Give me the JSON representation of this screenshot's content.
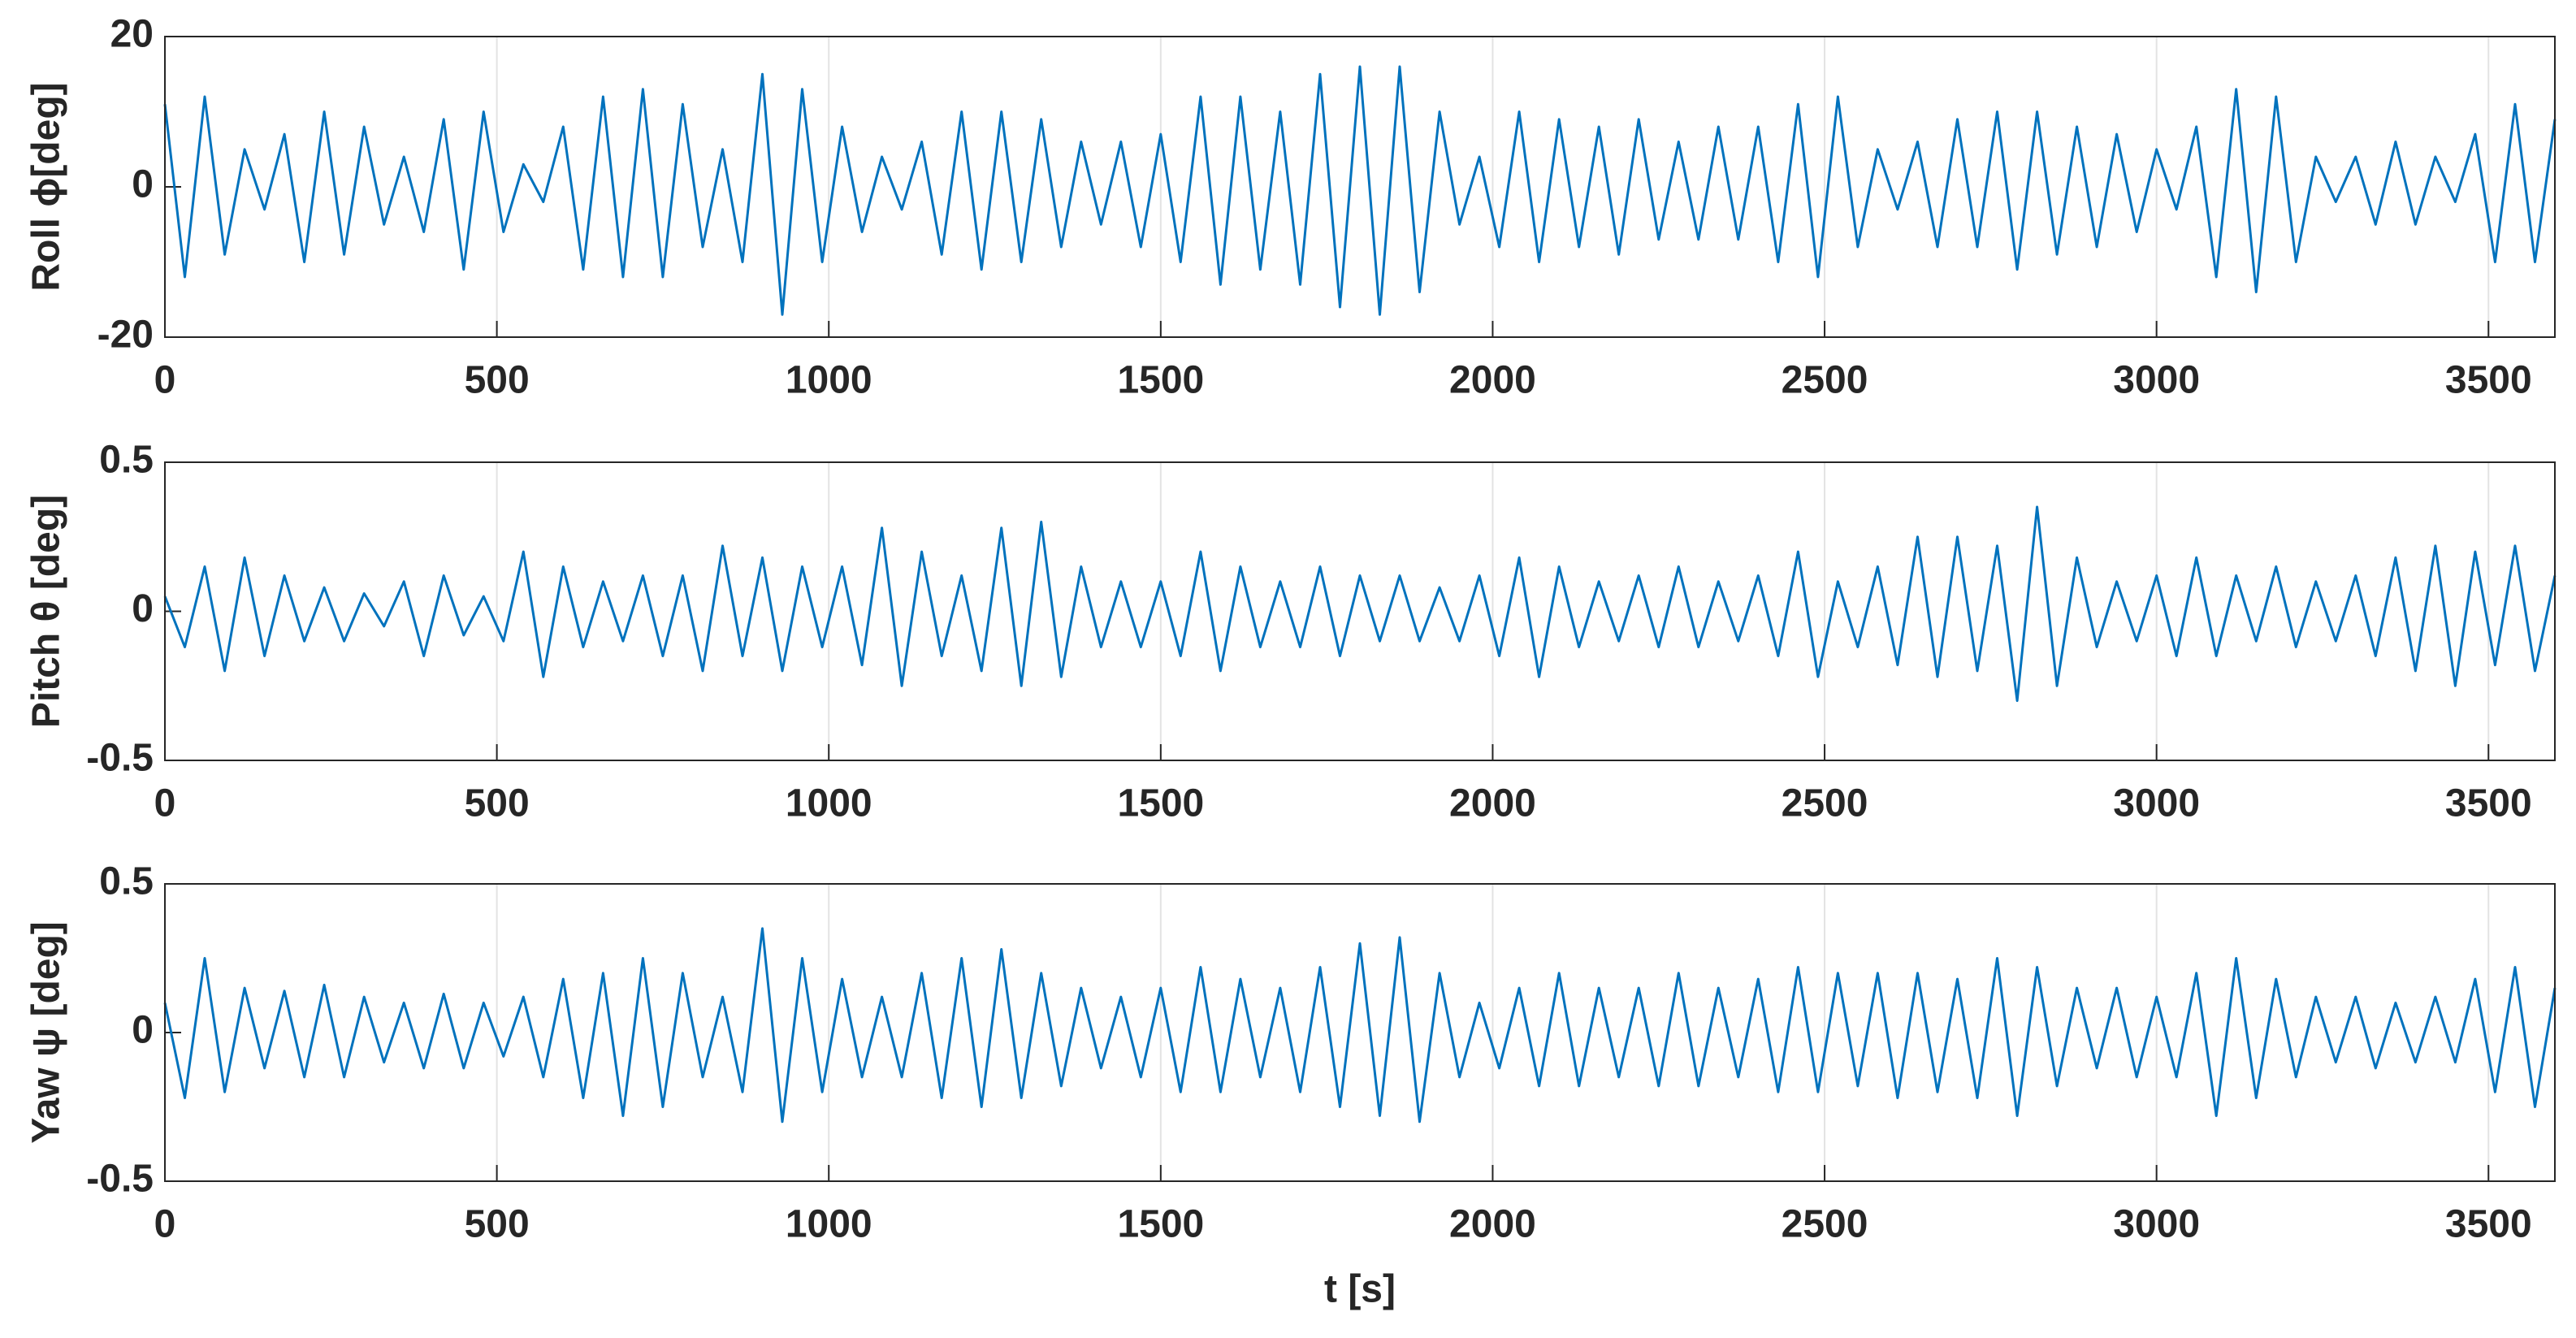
{
  "chart_data": [
    {
      "type": "line",
      "ylabel": "Roll ϕ[deg]",
      "xlim": [
        0,
        3600
      ],
      "ylim": [
        -20,
        20
      ],
      "xticks": [
        0,
        500,
        1000,
        1500,
        2000,
        2500,
        3000,
        3500
      ],
      "yticks": [
        -20,
        0,
        20
      ],
      "grid": "x",
      "x": [
        0,
        30,
        60,
        90,
        120,
        150,
        180,
        210,
        240,
        270,
        300,
        330,
        360,
        390,
        420,
        450,
        480,
        510,
        540,
        570,
        600,
        630,
        660,
        690,
        720,
        750,
        780,
        810,
        840,
        870,
        900,
        930,
        960,
        990,
        1020,
        1050,
        1080,
        1110,
        1140,
        1170,
        1200,
        1230,
        1260,
        1290,
        1320,
        1350,
        1380,
        1410,
        1440,
        1470,
        1500,
        1530,
        1560,
        1590,
        1620,
        1650,
        1680,
        1710,
        1740,
        1770,
        1800,
        1830,
        1860,
        1890,
        1920,
        1950,
        1980,
        2010,
        2040,
        2070,
        2100,
        2130,
        2160,
        2190,
        2220,
        2250,
        2280,
        2310,
        2340,
        2370,
        2400,
        2430,
        2460,
        2490,
        2520,
        2550,
        2580,
        2610,
        2640,
        2670,
        2700,
        2730,
        2760,
        2790,
        2820,
        2850,
        2880,
        2910,
        2940,
        2970,
        3000,
        3030,
        3060,
        3090,
        3120,
        3150,
        3180,
        3210,
        3240,
        3270,
        3300,
        3330,
        3360,
        3390,
        3420,
        3450,
        3480,
        3510,
        3540,
        3570,
        3600
      ],
      "series": [
        {
          "color": "#0072bd",
          "values": [
            11,
            -12,
            12,
            -9,
            5,
            -3,
            7,
            -10,
            10,
            -9,
            8,
            -5,
            4,
            -6,
            9,
            -11,
            10,
            -6,
            3,
            -2,
            8,
            -11,
            12,
            -12,
            13,
            -12,
            11,
            -8,
            5,
            -10,
            15,
            -17,
            13,
            -10,
            8,
            -6,
            4,
            -3,
            6,
            -9,
            10,
            -11,
            10,
            -10,
            9,
            -8,
            6,
            -5,
            6,
            -8,
            7,
            -10,
            12,
            -13,
            12,
            -11,
            10,
            -13,
            15,
            -16,
            16,
            -17,
            16,
            -14,
            10,
            -5,
            4,
            -8,
            10,
            -10,
            9,
            -8,
            8,
            -9,
            9,
            -7,
            6,
            -7,
            8,
            -7,
            8,
            -10,
            11,
            -12,
            12,
            -8,
            5,
            -3,
            6,
            -8,
            9,
            -8,
            10,
            -11,
            10,
            -9,
            8,
            -8,
            7,
            -6,
            5,
            -3,
            8,
            -12,
            13,
            -14,
            12,
            -10,
            4,
            -2,
            4,
            -5,
            6,
            -5,
            4,
            -2,
            7,
            -10,
            11,
            -10,
            9
          ]
        }
      ]
    },
    {
      "type": "line",
      "ylabel": "Pitch θ [deg]",
      "xlim": [
        0,
        3600
      ],
      "ylim": [
        -0.5,
        0.5
      ],
      "xticks": [
        0,
        500,
        1000,
        1500,
        2000,
        2500,
        3000,
        3500
      ],
      "yticks": [
        -0.5,
        0,
        0.5
      ],
      "grid": "x",
      "x": [
        0,
        30,
        60,
        90,
        120,
        150,
        180,
        210,
        240,
        270,
        300,
        330,
        360,
        390,
        420,
        450,
        480,
        510,
        540,
        570,
        600,
        630,
        660,
        690,
        720,
        750,
        780,
        810,
        840,
        870,
        900,
        930,
        960,
        990,
        1020,
        1050,
        1080,
        1110,
        1140,
        1170,
        1200,
        1230,
        1260,
        1290,
        1320,
        1350,
        1380,
        1410,
        1440,
        1470,
        1500,
        1530,
        1560,
        1590,
        1620,
        1650,
        1680,
        1710,
        1740,
        1770,
        1800,
        1830,
        1860,
        1890,
        1920,
        1950,
        1980,
        2010,
        2040,
        2070,
        2100,
        2130,
        2160,
        2190,
        2220,
        2250,
        2280,
        2310,
        2340,
        2370,
        2400,
        2430,
        2460,
        2490,
        2520,
        2550,
        2580,
        2610,
        2640,
        2670,
        2700,
        2730,
        2760,
        2790,
        2820,
        2850,
        2880,
        2910,
        2940,
        2970,
        3000,
        3030,
        3060,
        3090,
        3120,
        3150,
        3180,
        3210,
        3240,
        3270,
        3300,
        3330,
        3360,
        3390,
        3420,
        3450,
        3480,
        3510,
        3540,
        3570,
        3600
      ],
      "series": [
        {
          "color": "#0072bd",
          "values": [
            0.05,
            -0.12,
            0.15,
            -0.2,
            0.18,
            -0.15,
            0.12,
            -0.1,
            0.08,
            -0.1,
            0.06,
            -0.05,
            0.1,
            -0.15,
            0.12,
            -0.08,
            0.05,
            -0.1,
            0.2,
            -0.22,
            0.15,
            -0.12,
            0.1,
            -0.1,
            0.12,
            -0.15,
            0.12,
            -0.2,
            0.22,
            -0.15,
            0.18,
            -0.2,
            0.15,
            -0.12,
            0.15,
            -0.18,
            0.28,
            -0.25,
            0.2,
            -0.15,
            0.12,
            -0.2,
            0.28,
            -0.25,
            0.3,
            -0.22,
            0.15,
            -0.12,
            0.1,
            -0.12,
            0.1,
            -0.15,
            0.2,
            -0.2,
            0.15,
            -0.12,
            0.1,
            -0.12,
            0.15,
            -0.15,
            0.12,
            -0.1,
            0.12,
            -0.1,
            0.08,
            -0.1,
            0.12,
            -0.15,
            0.18,
            -0.22,
            0.15,
            -0.12,
            0.1,
            -0.1,
            0.12,
            -0.12,
            0.15,
            -0.12,
            0.1,
            -0.1,
            0.12,
            -0.15,
            0.2,
            -0.22,
            0.1,
            -0.12,
            0.15,
            -0.18,
            0.25,
            -0.22,
            0.25,
            -0.2,
            0.22,
            -0.3,
            0.35,
            -0.25,
            0.18,
            -0.12,
            0.1,
            -0.1,
            0.12,
            -0.15,
            0.18,
            -0.15,
            0.12,
            -0.1,
            0.15,
            -0.12,
            0.1,
            -0.1,
            0.12,
            -0.15,
            0.18,
            -0.2,
            0.22,
            -0.25,
            0.2,
            -0.18,
            0.22,
            -0.2,
            0.12
          ]
        }
      ]
    },
    {
      "type": "line",
      "ylabel": "Yaw ψ [deg]",
      "xlabel": "t [s]",
      "xlim": [
        0,
        3600
      ],
      "ylim": [
        -0.5,
        0.5
      ],
      "xticks": [
        0,
        500,
        1000,
        1500,
        2000,
        2500,
        3000,
        3500
      ],
      "yticks": [
        -0.5,
        0,
        0.5
      ],
      "grid": "x",
      "x": [
        0,
        30,
        60,
        90,
        120,
        150,
        180,
        210,
        240,
        270,
        300,
        330,
        360,
        390,
        420,
        450,
        480,
        510,
        540,
        570,
        600,
        630,
        660,
        690,
        720,
        750,
        780,
        810,
        840,
        870,
        900,
        930,
        960,
        990,
        1020,
        1050,
        1080,
        1110,
        1140,
        1170,
        1200,
        1230,
        1260,
        1290,
        1320,
        1350,
        1380,
        1410,
        1440,
        1470,
        1500,
        1530,
        1560,
        1590,
        1620,
        1650,
        1680,
        1710,
        1740,
        1770,
        1800,
        1830,
        1860,
        1890,
        1920,
        1950,
        1980,
        2010,
        2040,
        2070,
        2100,
        2130,
        2160,
        2190,
        2220,
        2250,
        2280,
        2310,
        2340,
        2370,
        2400,
        2430,
        2460,
        2490,
        2520,
        2550,
        2580,
        2610,
        2640,
        2670,
        2700,
        2730,
        2760,
        2790,
        2820,
        2850,
        2880,
        2910,
        2940,
        2970,
        3000,
        3030,
        3060,
        3090,
        3120,
        3150,
        3180,
        3210,
        3240,
        3270,
        3300,
        3330,
        3360,
        3390,
        3420,
        3450,
        3480,
        3510,
        3540,
        3570,
        3600
      ],
      "series": [
        {
          "color": "#0072bd",
          "values": [
            0.1,
            -0.22,
            0.25,
            -0.2,
            0.15,
            -0.12,
            0.14,
            -0.15,
            0.16,
            -0.15,
            0.12,
            -0.1,
            0.1,
            -0.12,
            0.13,
            -0.12,
            0.1,
            -0.08,
            0.12,
            -0.15,
            0.18,
            -0.22,
            0.2,
            -0.28,
            0.25,
            -0.25,
            0.2,
            -0.15,
            0.12,
            -0.2,
            0.35,
            -0.3,
            0.25,
            -0.2,
            0.18,
            -0.15,
            0.12,
            -0.15,
            0.2,
            -0.22,
            0.25,
            -0.25,
            0.28,
            -0.22,
            0.2,
            -0.18,
            0.15,
            -0.12,
            0.12,
            -0.15,
            0.15,
            -0.2,
            0.22,
            -0.2,
            0.18,
            -0.15,
            0.15,
            -0.2,
            0.22,
            -0.25,
            0.3,
            -0.28,
            0.32,
            -0.3,
            0.2,
            -0.15,
            0.1,
            -0.12,
            0.15,
            -0.18,
            0.2,
            -0.18,
            0.15,
            -0.15,
            0.15,
            -0.18,
            0.2,
            -0.18,
            0.15,
            -0.15,
            0.18,
            -0.2,
            0.22,
            -0.2,
            0.2,
            -0.18,
            0.2,
            -0.22,
            0.2,
            -0.2,
            0.18,
            -0.22,
            0.25,
            -0.28,
            0.22,
            -0.18,
            0.15,
            -0.12,
            0.15,
            -0.15,
            0.12,
            -0.15,
            0.2,
            -0.28,
            0.25,
            -0.22,
            0.18,
            -0.15,
            0.12,
            -0.1,
            0.12,
            -0.12,
            0.1,
            -0.1,
            0.12,
            -0.1,
            0.18,
            -0.2,
            0.22,
            -0.25,
            0.15
          ]
        }
      ]
    }
  ]
}
